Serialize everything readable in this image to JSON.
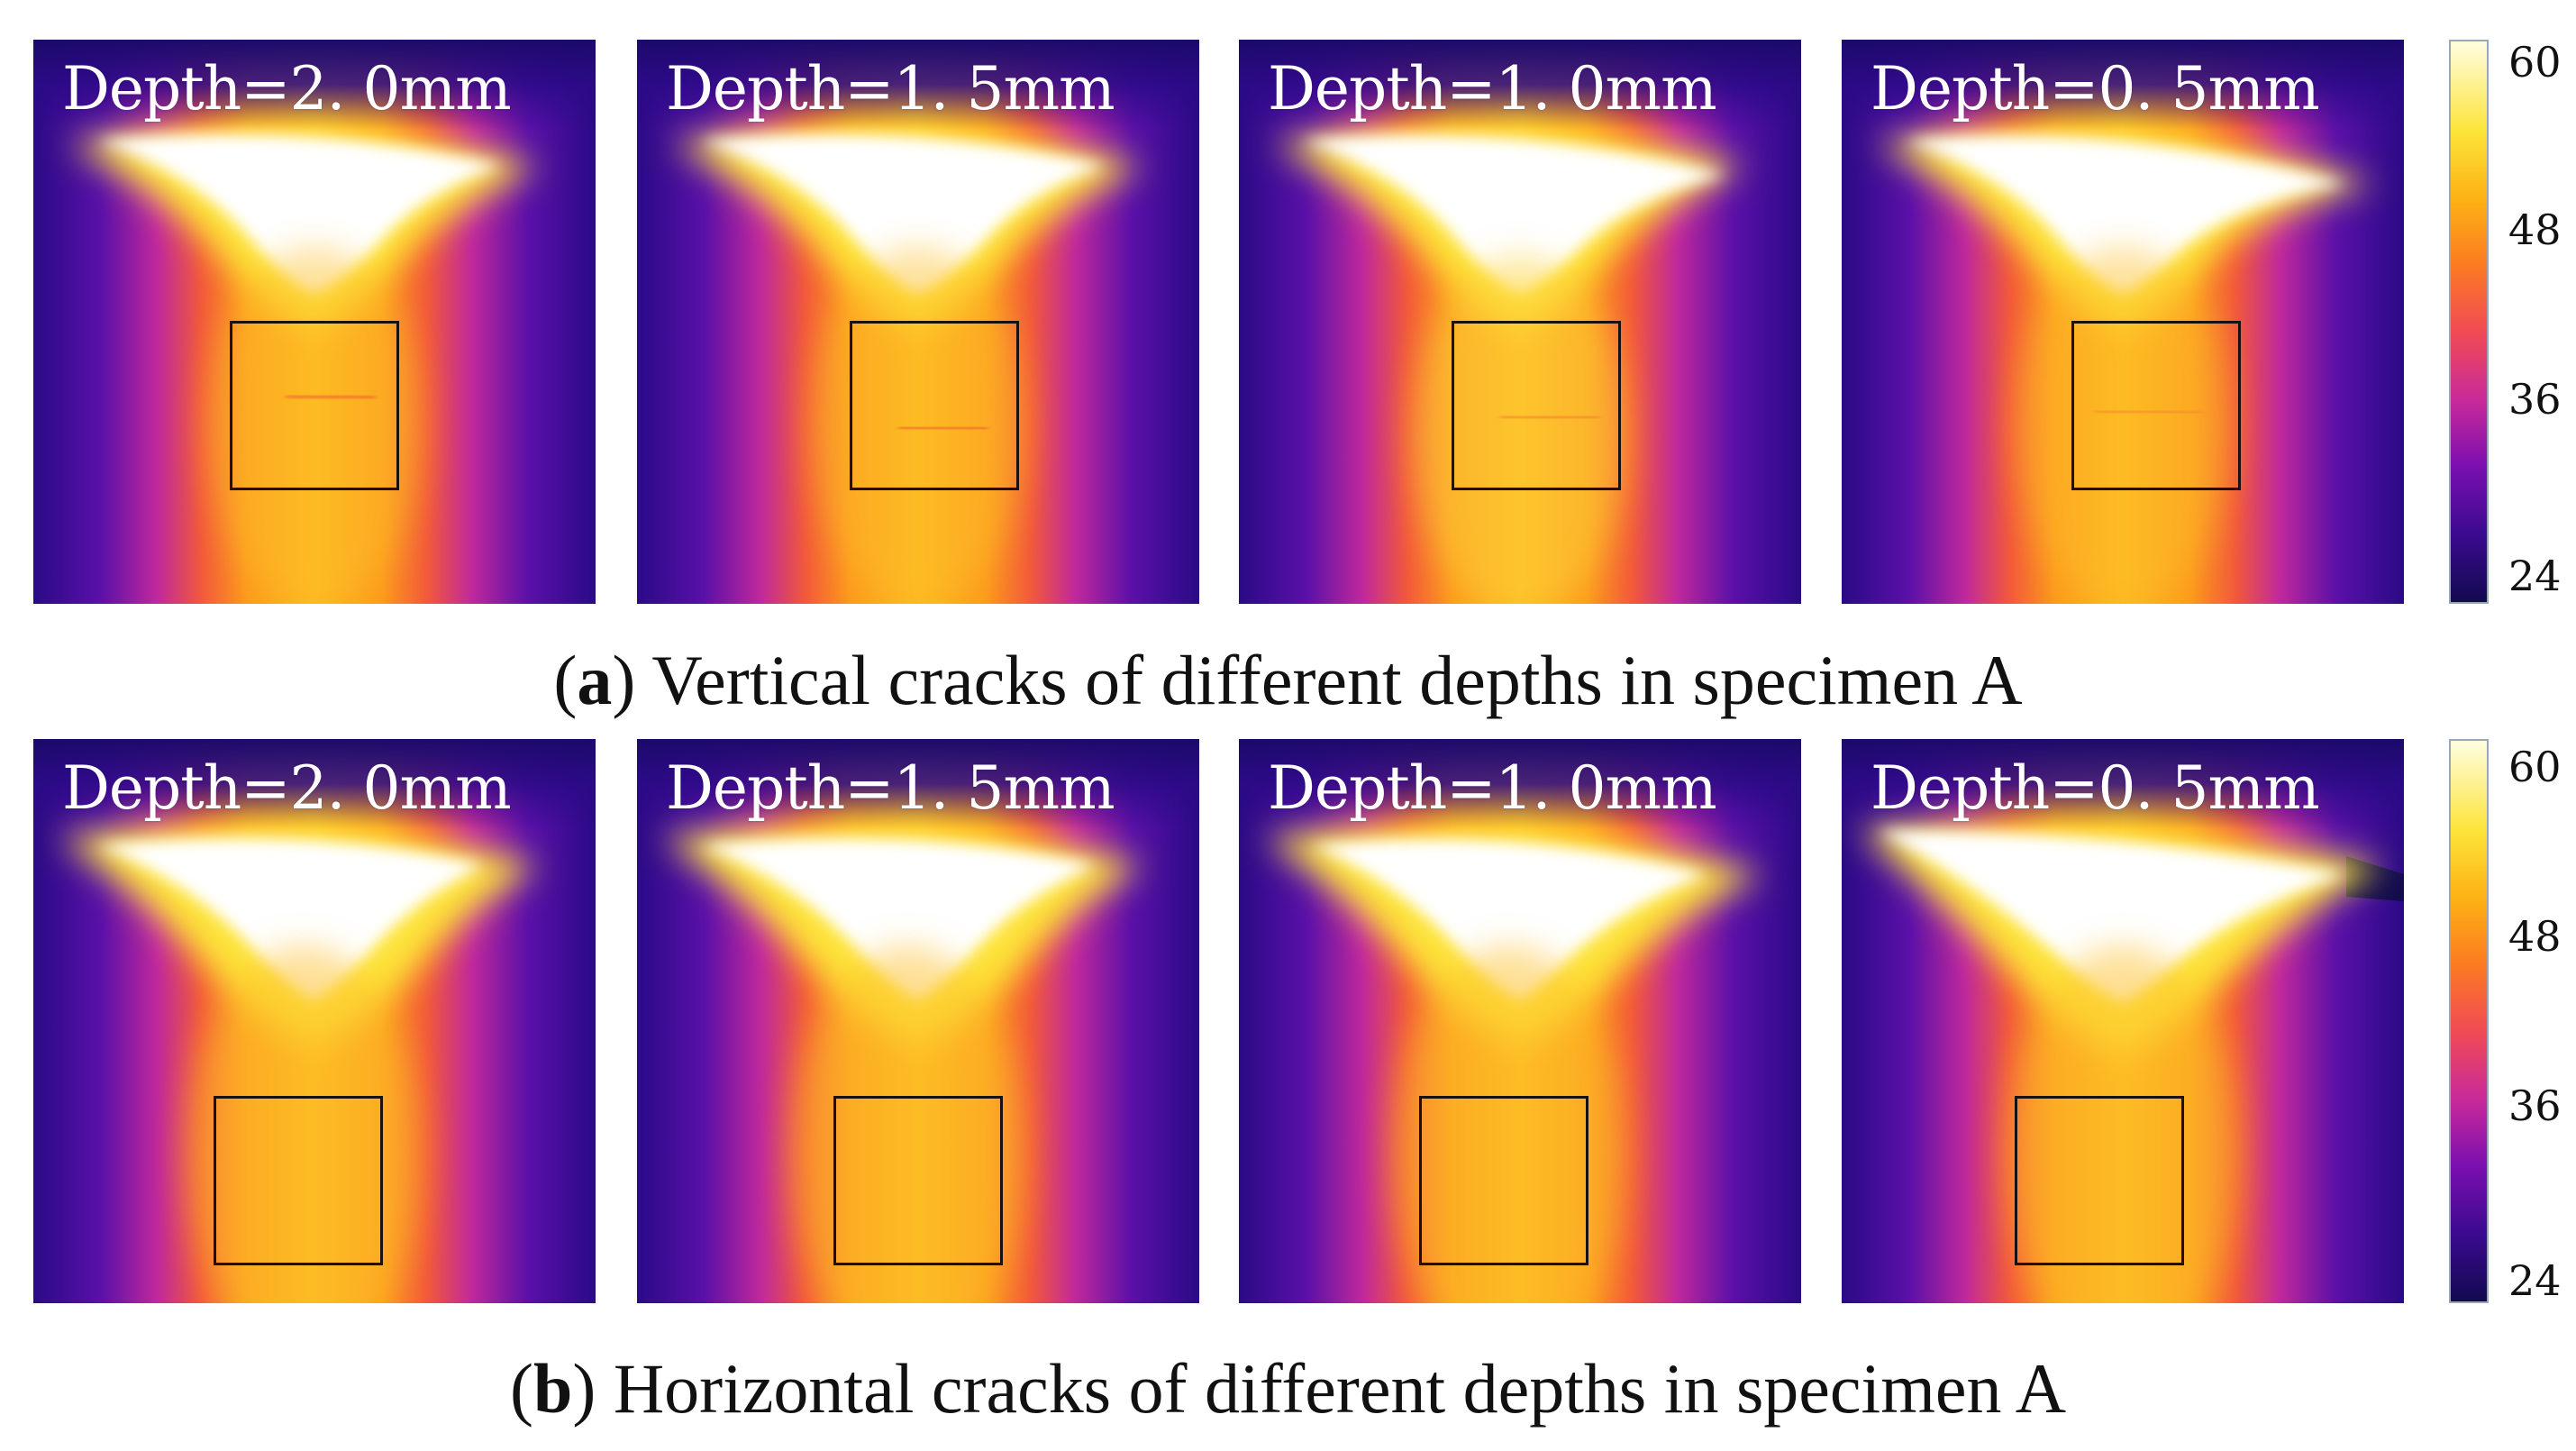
{
  "colorbar": {
    "ticks": [
      "60",
      "48",
      "36",
      "24"
    ],
    "min": 24,
    "max": 60,
    "colors": [
      "#120a50",
      "#3a0a8e",
      "#7a0fb0",
      "#c82a9a",
      "#f04a55",
      "#fb7a22",
      "#fdb214",
      "#fde43a",
      "#fffde0"
    ]
  },
  "row_a": {
    "caption_letter": "a",
    "caption_text": " Vertical cracks of different depths in specimen A",
    "panels": [
      {
        "label": "Depth=2. 0mm"
      },
      {
        "label": "Depth=1. 5mm"
      },
      {
        "label": "Depth=1. 0mm"
      },
      {
        "label": "Depth=0. 5mm"
      }
    ]
  },
  "row_b": {
    "caption_letter": "b",
    "caption_text": " Horizontal cracks of different depths in specimen A",
    "panels": [
      {
        "label": "Depth=2. 0mm"
      },
      {
        "label": "Depth=1. 5mm"
      },
      {
        "label": "Depth=1. 0mm"
      },
      {
        "label": "Depth=0. 5mm"
      }
    ]
  }
}
